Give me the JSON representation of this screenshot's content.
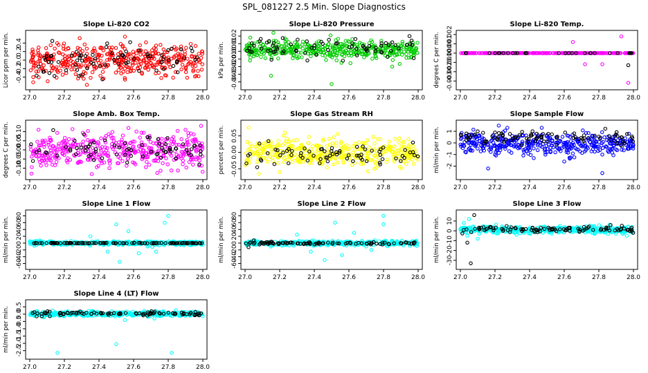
{
  "page_title": "SPL_081227  2.5 Min. Slope Diagnostics",
  "chart_data": [
    {
      "type": "scatter",
      "title": "Slope Li-820 CO2",
      "xlabel": "",
      "ylabel": "Licor ppm per min.",
      "xlim": [
        27.0,
        28.0
      ],
      "ylim": [
        -0.6,
        0.6
      ],
      "x_ticks": [
        "27.0",
        "27.2",
        "27.4",
        "27.6",
        "27.8",
        "28.0"
      ],
      "y_ticks": [
        "-0.4",
        "-0.2",
        "0.0",
        "0.2",
        "0.4"
      ],
      "grid": false,
      "series": [
        {
          "color": "#ff0000",
          "center": 0.0,
          "spread": 0.2,
          "count": 420,
          "outliers": [
            [
              27.02,
              -0.52
            ],
            [
              27.33,
              -0.58
            ],
            [
              27.55,
              0.55
            ],
            [
              27.76,
              -0.42
            ],
            [
              27.93,
              0.38
            ]
          ]
        },
        {
          "color": "#000000",
          "center": 0.0,
          "spread": 0.17,
          "count": 70,
          "outliers": [
            [
              27.13,
              0.45
            ],
            [
              27.42,
              -0.45
            ],
            [
              27.58,
              0.42
            ]
          ]
        }
      ]
    },
    {
      "type": "scatter",
      "title": "Slope Li-820 Pressure",
      "xlabel": "",
      "ylabel": "kPa per min.",
      "xlim": [
        27.0,
        28.0
      ],
      "ylim": [
        -0.045,
        0.022
      ],
      "x_ticks": [
        "27.0",
        "27.2",
        "27.4",
        "27.6",
        "27.8",
        "28.0"
      ],
      "y_ticks": [
        "-0.04",
        "-0.03",
        "-0.02",
        "-0.01",
        "0.00",
        "0.01",
        "0.02"
      ],
      "grid": false,
      "series": [
        {
          "color": "#00cc00",
          "center": 0.002,
          "spread": 0.006,
          "count": 420,
          "outliers": [
            [
              27.15,
              -0.032
            ],
            [
              27.5,
              -0.043
            ],
            [
              27.85,
              -0.02
            ],
            [
              27.03,
              0.018
            ],
            [
              27.62,
              0.016
            ]
          ]
        },
        {
          "color": "#000000",
          "center": 0.003,
          "spread": 0.006,
          "count": 70,
          "outliers": [
            [
              27.95,
              0.02
            ],
            [
              27.36,
              -0.012
            ]
          ]
        }
      ]
    },
    {
      "type": "scatter",
      "title": "Slope Li-820 Temp.",
      "xlabel": "",
      "ylabel": "degrees C per min.",
      "xlim": [
        27.0,
        28.0
      ],
      "ylim": [
        -0.0035,
        0.002
      ],
      "x_ticks": [
        "27.0",
        "27.2",
        "27.4",
        "27.6",
        "27.8",
        "28.0"
      ],
      "y_ticks": [
        "-0.003",
        "-0.002",
        "-0.001",
        "0.000",
        "0.001",
        "0.002"
      ],
      "grid": false,
      "series": [
        {
          "color": "#ff00ff",
          "center": 0.0,
          "spread": 0.0,
          "count": 240,
          "outliers": [
            [
              27.65,
              0.0012
            ],
            [
              27.72,
              -0.0012
            ],
            [
              27.93,
              0.0018
            ],
            [
              27.97,
              -0.0032
            ],
            [
              27.82,
              -0.0012
            ]
          ]
        },
        {
          "color": "#000000",
          "center": 0.0,
          "spread": 0.0,
          "count": 30,
          "outliers": [
            [
              27.97,
              -0.0013
            ]
          ]
        }
      ]
    },
    {
      "type": "scatter",
      "title": "Slope Amb. Box Temp.",
      "xlabel": "",
      "ylabel": "degrees C per min.",
      "xlim": [
        27.0,
        28.0
      ],
      "ylim": [
        -0.14,
        0.14
      ],
      "x_ticks": [
        "27.0",
        "27.2",
        "27.4",
        "27.6",
        "27.8",
        "28.0"
      ],
      "y_ticks": [
        "-0.10",
        "-0.05",
        "0.00",
        "0.05",
        "0.10"
      ],
      "grid": false,
      "series": [
        {
          "color": "#ff00ff",
          "center": 0.0,
          "spread": 0.045,
          "count": 420,
          "outliers": [
            [
              27.01,
              -0.13
            ],
            [
              27.57,
              0.12
            ],
            [
              27.9,
              0.11
            ],
            [
              27.46,
              -0.1
            ]
          ]
        },
        {
          "color": "#000000",
          "center": 0.01,
          "spread": 0.035,
          "count": 70,
          "outliers": [
            [
              27.98,
              -0.08
            ],
            [
              27.68,
              0.07
            ]
          ]
        }
      ]
    },
    {
      "type": "scatter",
      "title": "Slope Gas Stream RH",
      "xlabel": "",
      "ylabel": "percent per min.",
      "xlim": [
        27.0,
        28.0
      ],
      "ylim": [
        -0.07,
        0.085
      ],
      "x_ticks": [
        "27.0",
        "27.2",
        "27.4",
        "27.6",
        "27.8",
        "28.0"
      ],
      "y_ticks": [
        "-0.05",
        "0.00",
        "0.05"
      ],
      "grid": false,
      "series": [
        {
          "color": "#ffff00",
          "center": 0.0,
          "spread": 0.02,
          "count": 420,
          "outliers": [
            [
              27.02,
              0.075
            ],
            [
              27.08,
              -0.065
            ],
            [
              27.2,
              -0.06
            ]
          ]
        },
        {
          "color": "#000000",
          "center": -0.01,
          "spread": 0.015,
          "count": 70,
          "outliers": [
            [
              27.97,
              0.03
            ],
            [
              27.07,
              -0.045
            ]
          ]
        }
      ]
    },
    {
      "type": "scatter",
      "title": "Slope Sample Flow",
      "xlabel": "",
      "ylabel": "ml/min per min.",
      "xlim": [
        27.0,
        28.0
      ],
      "ylim": [
        -2.8,
        1.6
      ],
      "x_ticks": [
        "27.0",
        "27.2",
        "27.4",
        "27.6",
        "27.8",
        "28.0"
      ],
      "y_ticks": [
        "-2",
        "-1",
        "0",
        "1"
      ],
      "grid": false,
      "series": [
        {
          "color": "#0000ff",
          "center": -0.1,
          "spread": 0.45,
          "count": 420,
          "outliers": [
            [
              27.16,
              -2.2
            ],
            [
              27.47,
              1.3
            ],
            [
              27.82,
              -2.6
            ],
            [
              27.82,
              -1.0
            ],
            [
              27.6,
              -1.6
            ]
          ]
        },
        {
          "color": "#000000",
          "center": 0.5,
          "spread": 0.3,
          "count": 90,
          "outliers": [
            [
              27.1,
              1.0
            ],
            [
              27.2,
              0.9
            ]
          ]
        }
      ]
    },
    {
      "type": "scatter",
      "title": "Slope Line 1 Flow",
      "xlabel": "",
      "ylabel": "ml/min per min.",
      "xlim": [
        27.0,
        28.0
      ],
      "ylim": [
        -65,
        85
      ],
      "x_ticks": [
        "27.0",
        "27.2",
        "27.4",
        "27.6",
        "27.8",
        "28.0"
      ],
      "y_ticks": [
        "-60",
        "-40",
        "-20",
        "0",
        "20",
        "40",
        "60",
        "80"
      ],
      "grid": false,
      "series": [
        {
          "color": "#00ffff",
          "center": 0.0,
          "spread": 3.0,
          "count": 380,
          "outliers": [
            [
              27.45,
              -25
            ],
            [
              27.5,
              55
            ],
            [
              27.52,
              -55
            ],
            [
              27.57,
              35
            ],
            [
              27.63,
              -30
            ],
            [
              27.73,
              -25
            ],
            [
              27.78,
              60
            ],
            [
              27.8,
              80
            ],
            [
              27.35,
              20
            ],
            [
              27.68,
              -10
            ]
          ]
        },
        {
          "color": "#000000",
          "center": 0.0,
          "spread": 0.4,
          "count": 110,
          "outliers": []
        }
      ]
    },
    {
      "type": "scatter",
      "title": "Slope Line 2 Flow",
      "xlabel": "",
      "ylabel": "ml/min per min.",
      "xlim": [
        27.0,
        28.0
      ],
      "ylim": [
        -65,
        85
      ],
      "x_ticks": [
        "27.0",
        "27.2",
        "27.4",
        "27.6",
        "27.8",
        "28.0"
      ],
      "y_ticks": [
        "-60",
        "-40",
        "-20",
        "0",
        "20",
        "40",
        "60",
        "80"
      ],
      "grid": false,
      "series": [
        {
          "color": "#00ffff",
          "center": 0.0,
          "spread": 3.5,
          "count": 380,
          "outliers": [
            [
              27.38,
              -25
            ],
            [
              27.46,
              -50
            ],
            [
              27.52,
              60
            ],
            [
              27.56,
              -35
            ],
            [
              27.63,
              30
            ],
            [
              27.73,
              -20
            ],
            [
              27.8,
              55
            ],
            [
              27.8,
              80
            ],
            [
              27.3,
              25
            ],
            [
              27.7,
              -10
            ]
          ]
        },
        {
          "color": "#000000",
          "center": 0.0,
          "spread": 2.0,
          "count": 90,
          "outliers": [
            [
              27.05,
              8
            ],
            [
              27.02,
              -12
            ]
          ]
        }
      ]
    },
    {
      "type": "scatter",
      "title": "Slope Line 3 Flow",
      "xlabel": "",
      "ylabel": "ml/min per min.",
      "xlim": [
        27.0,
        28.0
      ],
      "ylim": [
        -35,
        17
      ],
      "x_ticks": [
        "27.0",
        "27.2",
        "27.4",
        "27.6",
        "27.8",
        "28.0"
      ],
      "y_ticks": [
        "-30",
        "-20",
        "-10",
        "0",
        "10"
      ],
      "grid": false,
      "series": [
        {
          "color": "#00ffff",
          "center": 1.0,
          "spread": 1.8,
          "count": 420,
          "outliers": [
            [
              27.02,
              8
            ],
            [
              27.04,
              -5
            ],
            [
              27.1,
              -8
            ],
            [
              27.05,
              12
            ]
          ]
        },
        {
          "color": "#000000",
          "center": 1.5,
          "spread": 1.5,
          "count": 100,
          "outliers": [
            [
              27.06,
              -33
            ],
            [
              27.08,
              16
            ],
            [
              27.04,
              -12
            ]
          ]
        }
      ]
    },
    {
      "type": "scatter",
      "title": "Slope Line 4 (LT) Flow",
      "xlabel": "",
      "ylabel": "ml/min per min.",
      "xlim": [
        27.0,
        28.0
      ],
      "ylim": [
        -2.8,
        0.7
      ],
      "x_ticks": [
        "27.0",
        "27.2",
        "27.4",
        "27.6",
        "27.8",
        "28.0"
      ],
      "y_ticks": [
        "-2.5",
        "-2.0",
        "-1.5",
        "-1.0",
        "-0.5",
        "0.0",
        "0.5"
      ],
      "grid": false,
      "series": [
        {
          "color": "#00ffff",
          "center": 0.02,
          "spread": 0.08,
          "count": 420,
          "outliers": [
            [
              27.16,
              -2.65
            ],
            [
              27.5,
              -2.05
            ],
            [
              27.82,
              -2.65
            ],
            [
              27.55,
              -0.4
            ],
            [
              27.72,
              -0.3
            ]
          ]
        },
        {
          "color": "#000000",
          "center": 0.05,
          "spread": 0.06,
          "count": 90,
          "outliers": [
            [
              27.04,
              -0.15
            ],
            [
              27.07,
              -0.15
            ]
          ]
        }
      ]
    }
  ]
}
